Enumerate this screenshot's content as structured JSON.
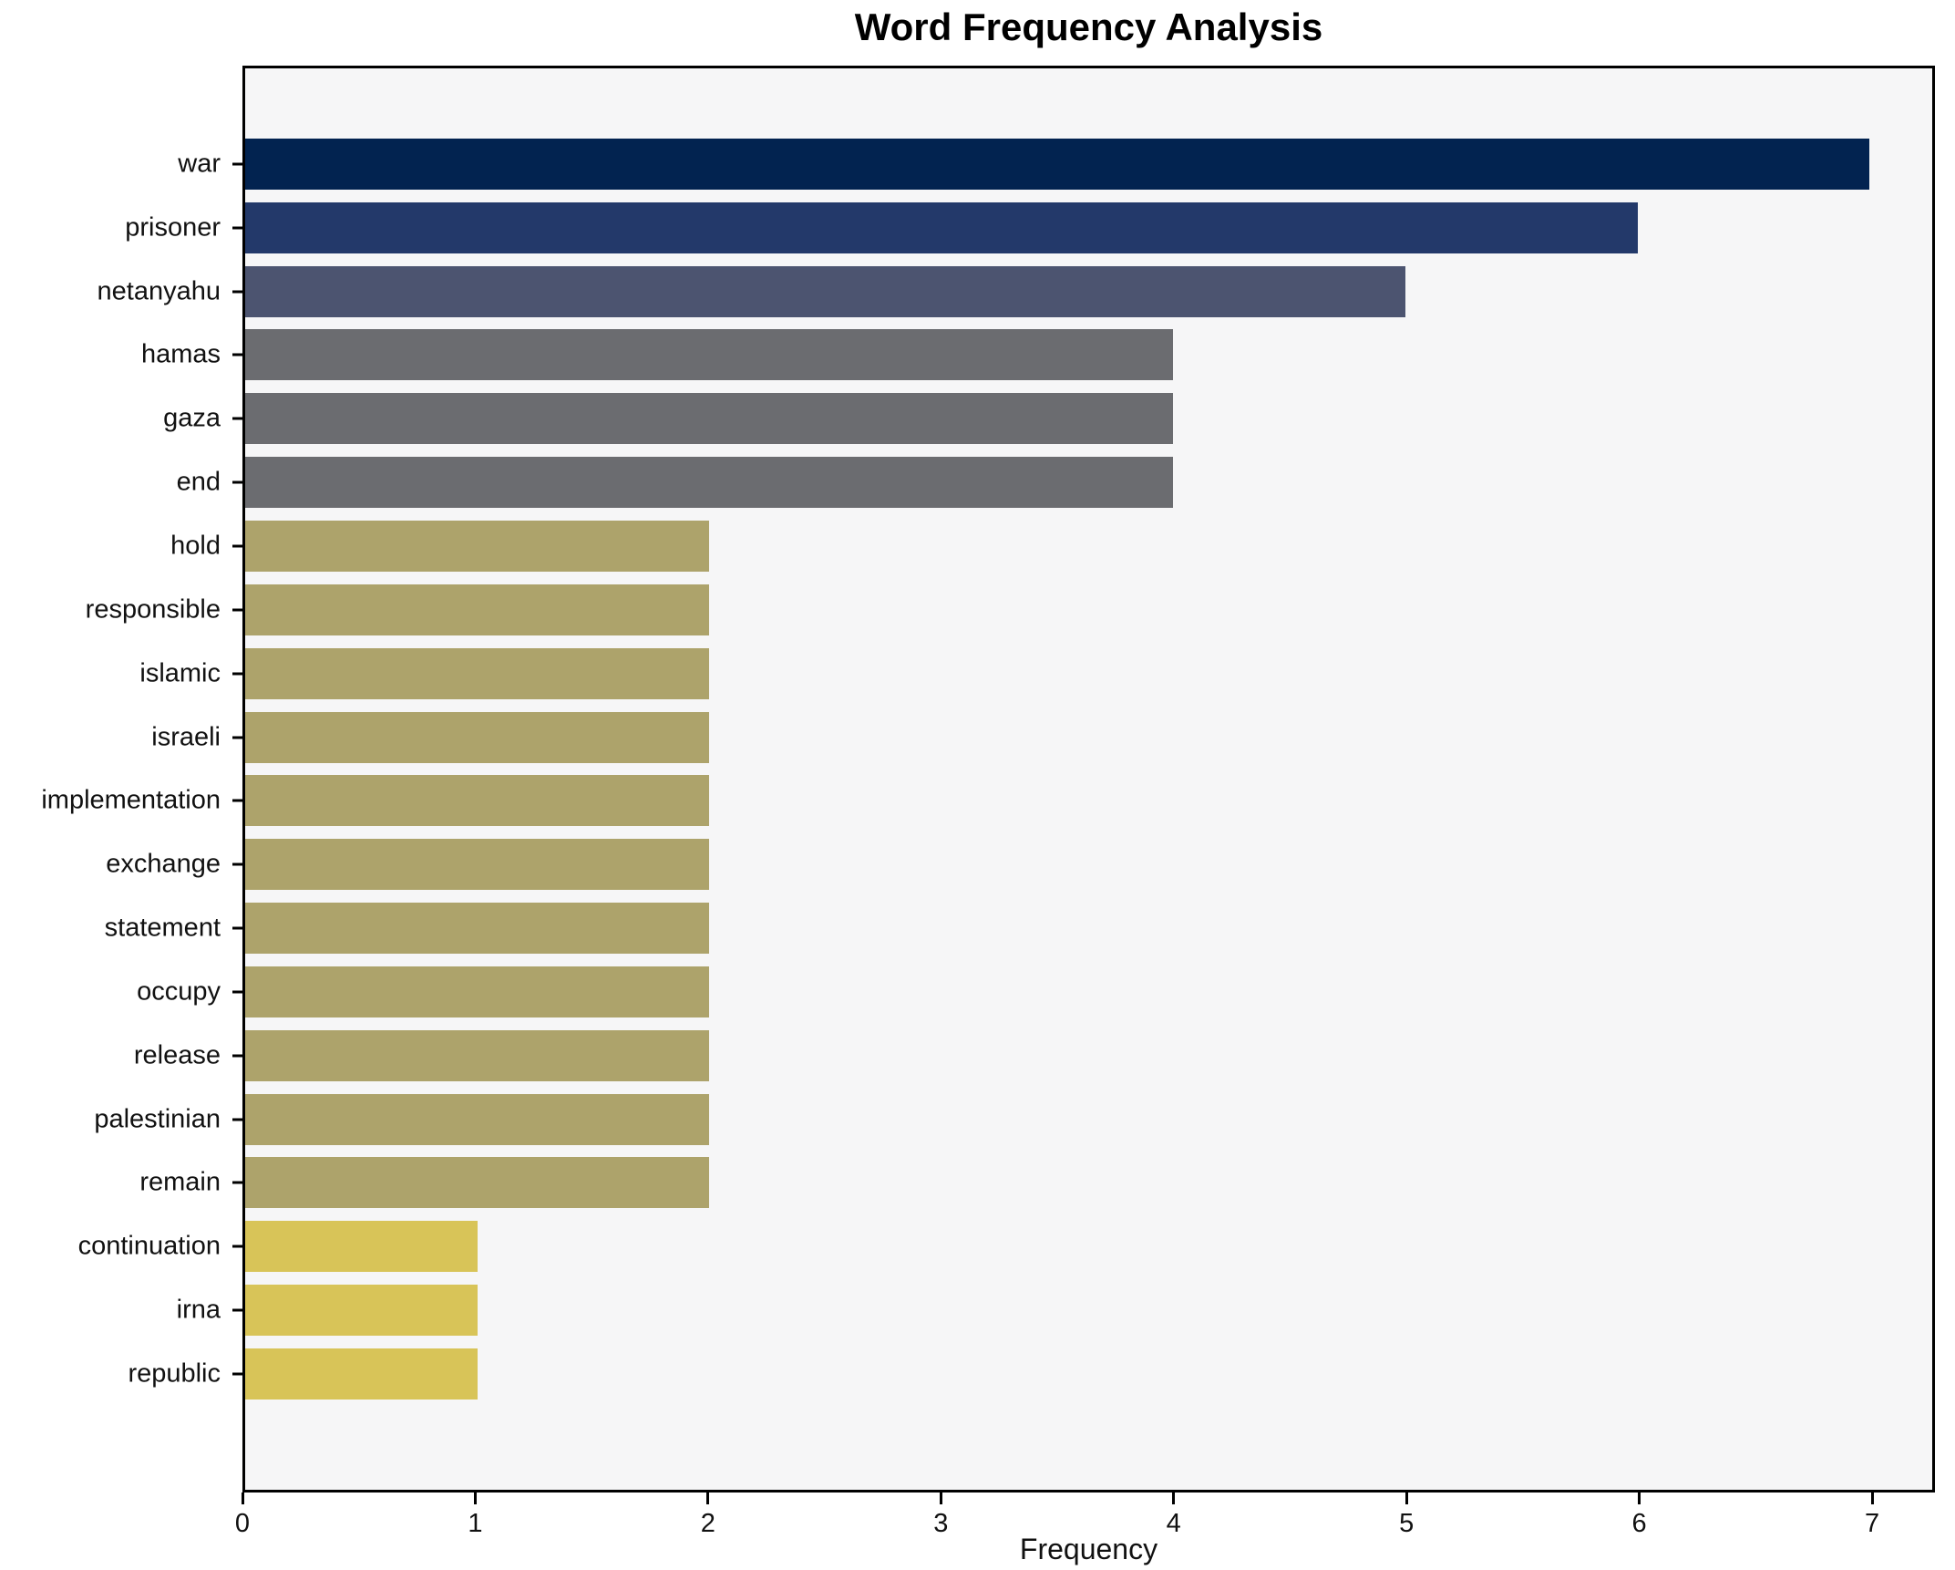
{
  "chart_data": {
    "type": "bar",
    "orientation": "horizontal",
    "title": "Word Frequency Analysis",
    "xlabel": "Frequency",
    "ylabel": "",
    "categories": [
      "war",
      "prisoner",
      "netanyahu",
      "hamas",
      "gaza",
      "end",
      "hold",
      "responsible",
      "islamic",
      "israeli",
      "implementation",
      "exchange",
      "statement",
      "occupy",
      "release",
      "palestinian",
      "remain",
      "continuation",
      "irna",
      "republic"
    ],
    "values": [
      7,
      6,
      5,
      4,
      4,
      4,
      2,
      2,
      2,
      2,
      2,
      2,
      2,
      2,
      2,
      2,
      2,
      1,
      1,
      1
    ],
    "bar_colors": [
      "#022350",
      "#23396a",
      "#4c5470",
      "#6b6c70",
      "#6b6c70",
      "#6b6c70",
      "#ada36b",
      "#ada36b",
      "#ada36b",
      "#ada36b",
      "#ada36b",
      "#ada36b",
      "#ada36b",
      "#ada36b",
      "#ada36b",
      "#ada36b",
      "#ada36b",
      "#d8c458",
      "#d8c458",
      "#d8c458"
    ],
    "colors_by_value": {
      "7": "#022350",
      "6": "#23396a",
      "5": "#4c5470",
      "4": "#6b6c70",
      "2": "#ada36b",
      "1": "#d8c458"
    },
    "x_ticks": [
      0,
      1,
      2,
      3,
      4,
      5,
      6,
      7
    ],
    "xlim": [
      0,
      7.27
    ],
    "grid": false,
    "legend": null,
    "plot_bg": "#f6f6f7",
    "figure_bg": "#ffffff",
    "spine_color": "#000000",
    "text_color": "#111111"
  }
}
